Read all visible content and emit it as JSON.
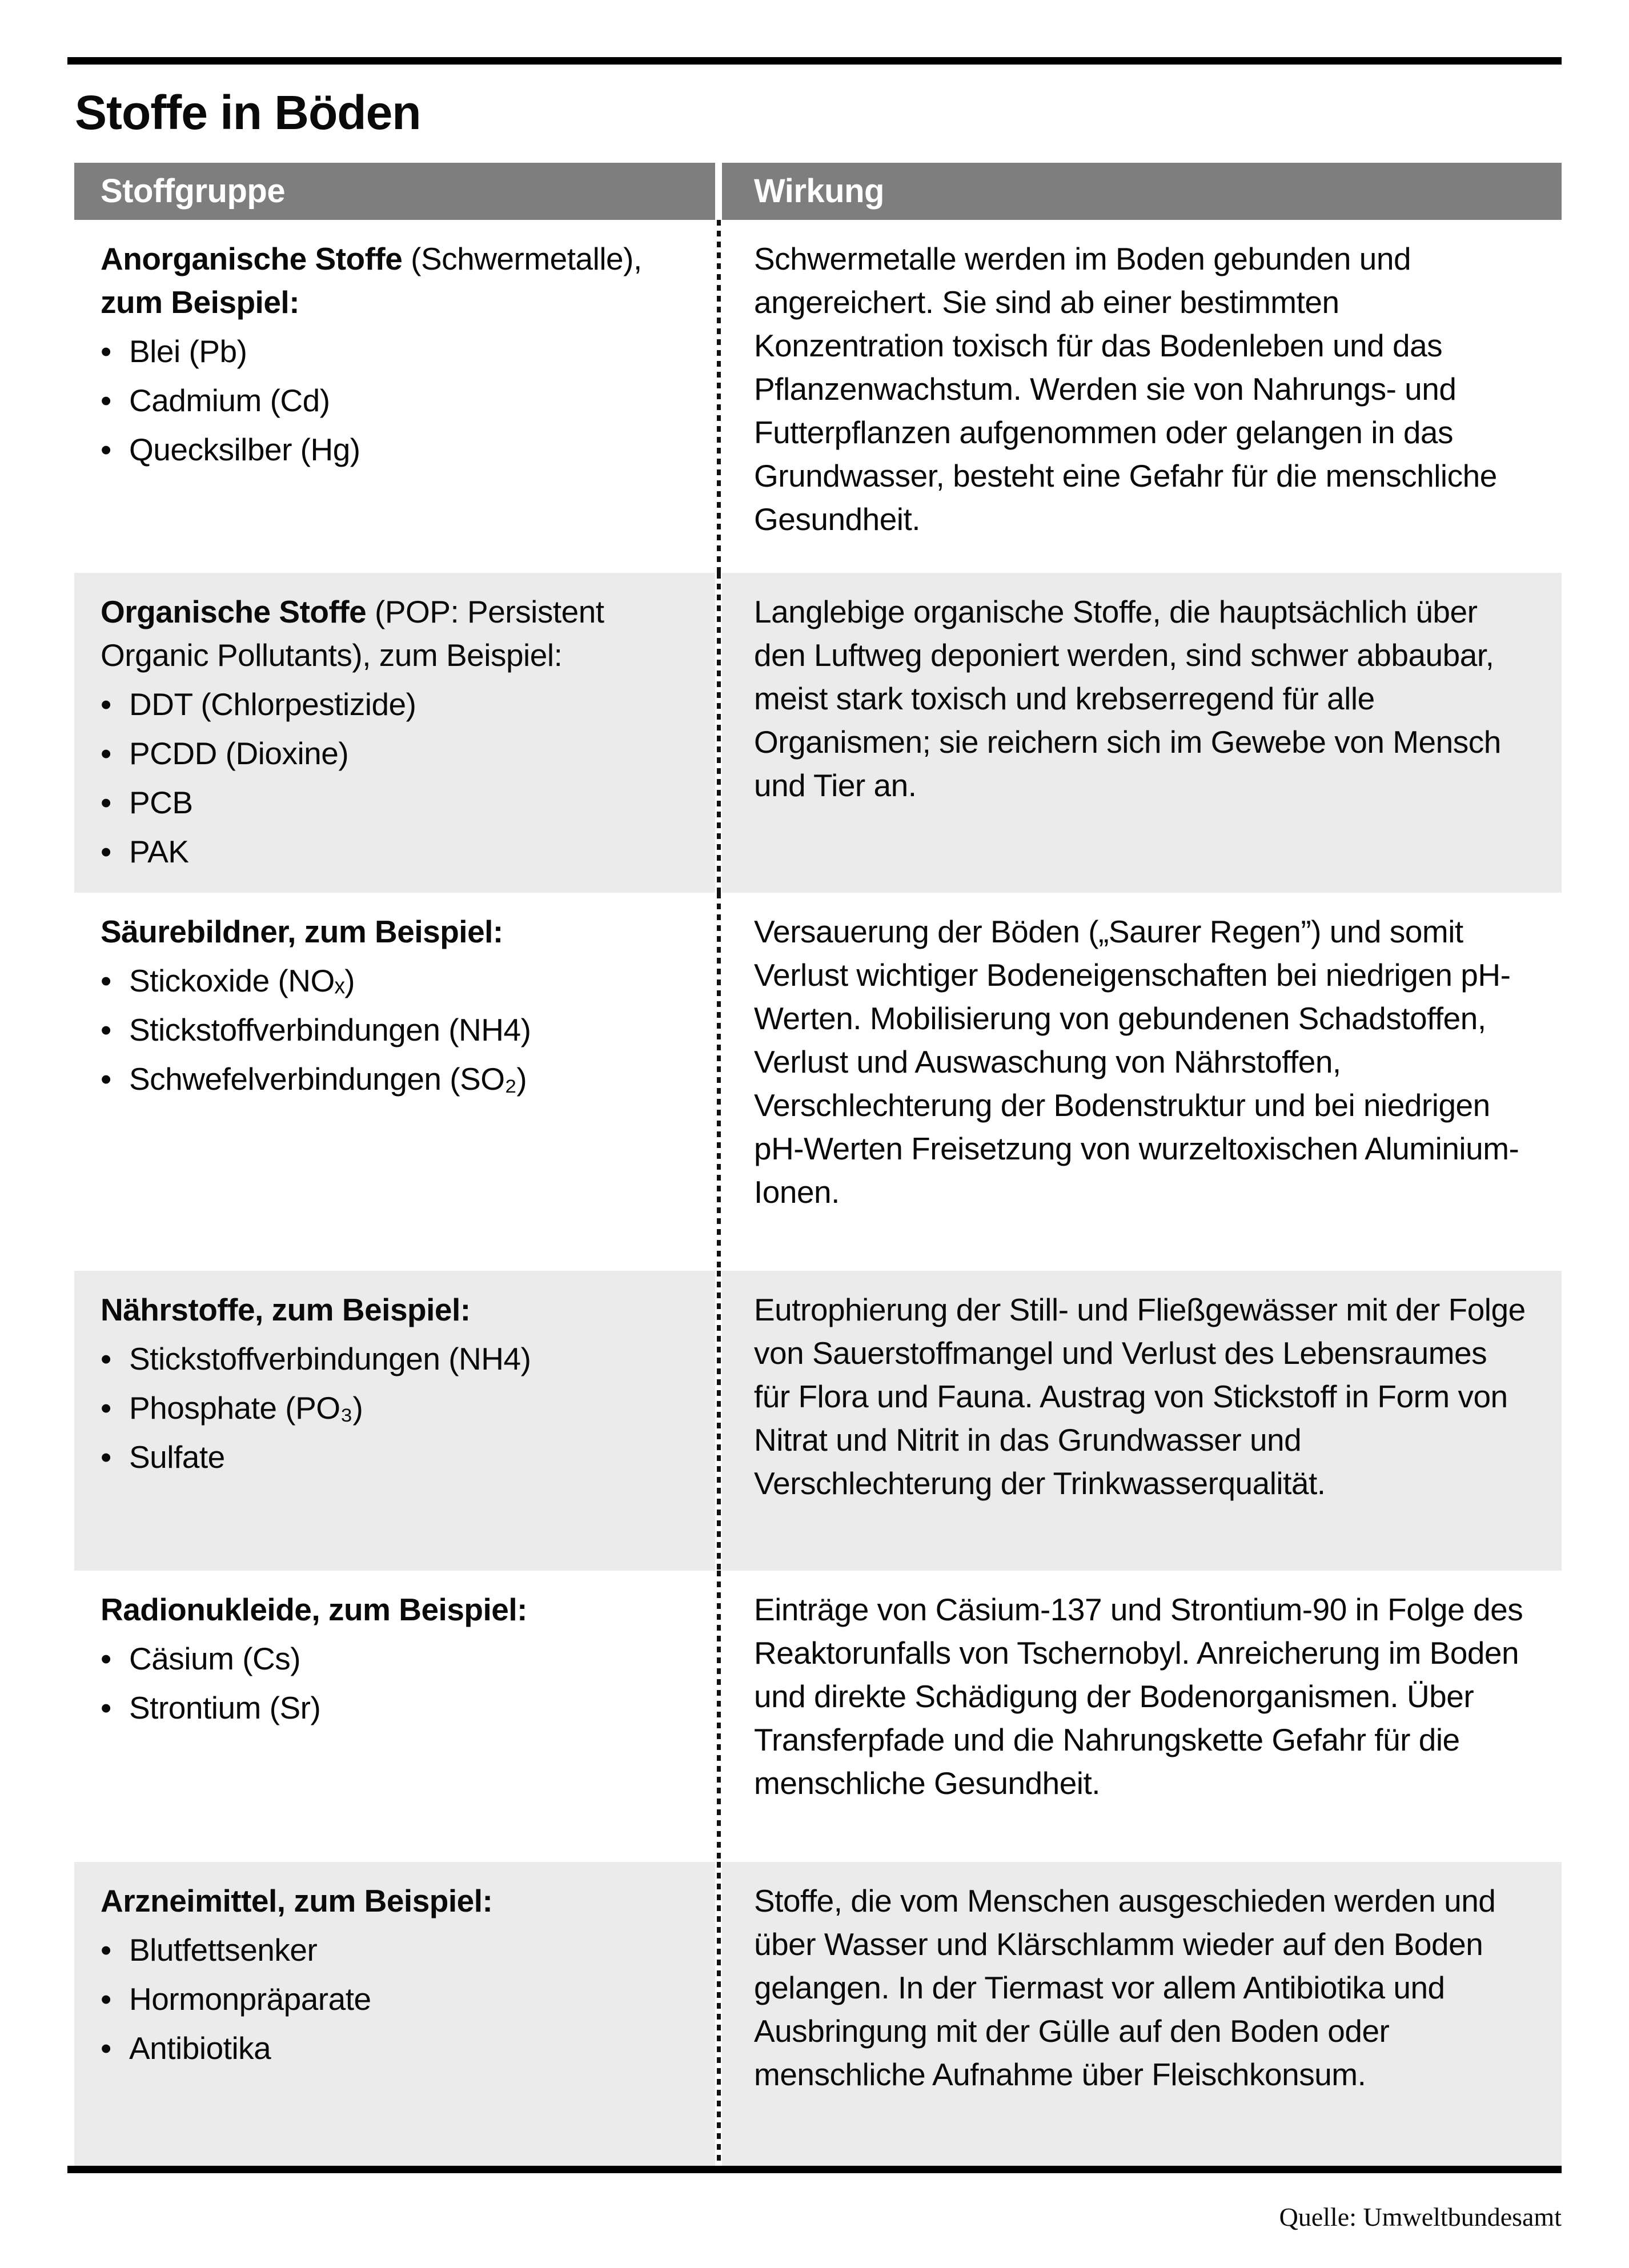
{
  "page": {
    "title": "Stoffe in Böden",
    "source_label": "Quelle: Umweltbundesamt"
  },
  "colors": {
    "header_bg": "#7e7e7e",
    "row_alt_bg": "#ebebeb",
    "rule_color": "#000000"
  },
  "table": {
    "bullet_glyph": "•",
    "columns": [
      "Stoffgruppe",
      "Wirkung"
    ],
    "rows": [
      {
        "shaded": false,
        "lead": [
          {
            "text": "Anorganische Stoffe",
            "bold": true
          },
          {
            "text": " (Schwermetalle), ",
            "bold": false
          },
          {
            "text": "zum Beispiel:",
            "bold": true
          }
        ],
        "items": [
          "Blei (Pb)",
          "Cadmium (Cd)",
          "Quecksilber (Hg)"
        ],
        "effect": "Schwermetalle werden im Boden gebunden und angereichert. Sie sind ab einer bestimmten Konzentration toxisch für das Bodenleben und das Pflanzenwachstum. Werden sie von Nahrungs- und Futterpflanzen aufgenommen oder gelangen in das Grundwasser, besteht eine Gefahr für die menschliche Gesundheit."
      },
      {
        "shaded": true,
        "lead": [
          {
            "text": "Organische Stoffe",
            "bold": true
          },
          {
            "text": " (POP: Persistent Organic Pollutants), zum Beispiel:",
            "bold": false
          }
        ],
        "items": [
          "DDT (Chlorpestizide)",
          "PCDD (Dioxine)",
          "PCB",
          "PAK"
        ],
        "effect": "Langlebige organische Stoffe, die hauptsächlich über den Luftweg deponiert werden, sind schwer abbaubar, meist stark toxisch und krebserregend für alle Organismen; sie reichern sich im Gewebe von Mensch und Tier an."
      },
      {
        "shaded": false,
        "lead": [
          {
            "text": "Säurebildner, zum Beispiel:",
            "bold": true
          }
        ],
        "items": [
          "Stickoxide (NOₓ)",
          "Stickstoffverbindungen (NH4)",
          "Schwefelverbindungen (SO₂)"
        ],
        "effect": "Versauerung der Böden („Saurer Regen”) und somit Verlust wichtiger Bodeneigenschaften bei niedrigen pH-Werten. Mobilisierung von gebundenen Schadstoffen, Verlust und Auswaschung von Nährstoffen, Verschlechterung der Bodenstruktur und bei niedrigen pH-Werten Freisetzung von wurzeltoxischen Aluminium-Ionen."
      },
      {
        "shaded": true,
        "lead": [
          {
            "text": "Nährstoffe, zum Beispiel:",
            "bold": true
          }
        ],
        "items": [
          "Stickstoffverbindungen (NH4)",
          "Phosphate (PO₃)",
          "Sulfate"
        ],
        "effect": "Eutrophierung der Still- und Fließgewässer mit der Folge von Sauerstoffmangel und Verlust des Lebensraumes für Flora und Fauna. Austrag von Stickstoff in Form von Nitrat und Nitrit in das Grundwasser und Verschlechterung der Trinkwasserqualität."
      },
      {
        "shaded": false,
        "lead": [
          {
            "text": "Radionukleide, zum Beispiel:",
            "bold": true
          }
        ],
        "items": [
          "Cäsium (Cs)",
          "Strontium (Sr)"
        ],
        "effect": "Einträge von Cäsium-137 und Strontium-90 in Folge des Reaktorunfalls von Tschernobyl. Anreicherung im Boden und direkte Schädigung der Bodenorganismen. Über Transferpfade und die Nahrungskette Gefahr für die menschliche Gesundheit."
      },
      {
        "shaded": true,
        "lead": [
          {
            "text": "Arzneimittel, zum Beispiel:",
            "bold": true
          }
        ],
        "items": [
          "Blutfettsenker",
          "Hormonpräparate",
          "Antibiotika"
        ],
        "effect": "Stoffe, die vom Menschen ausgeschieden werden und über Wasser und Klärschlamm wieder auf den Boden gelangen. In der Tiermast vor allem Antibiotika und Ausbringung mit der Gülle auf den Boden oder menschliche Aufnahme über Fleischkonsum."
      }
    ]
  }
}
